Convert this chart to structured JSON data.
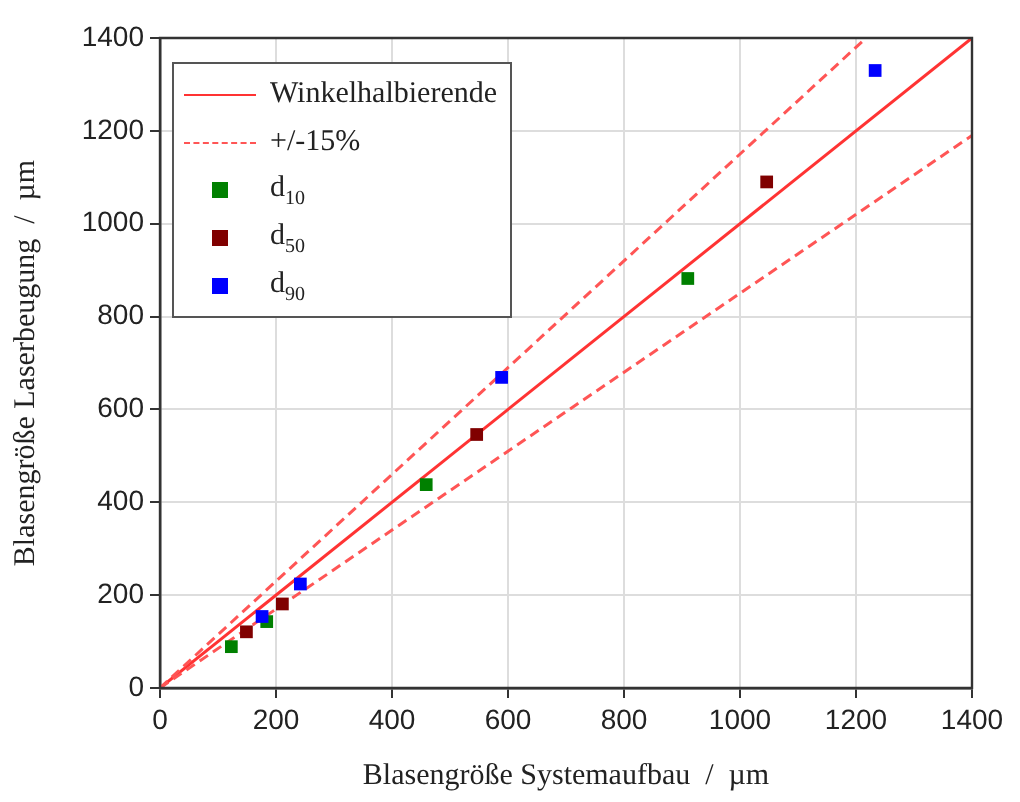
{
  "chart_data": {
    "type": "scatter",
    "xlabel": "Blasengröße Systemaufbau  /  µm",
    "ylabel": "Blasengröße Laserbeugung  /  µm",
    "xlim": [
      0,
      1400
    ],
    "ylim": [
      0,
      1400
    ],
    "xticks": [
      0,
      200,
      400,
      600,
      800,
      1000,
      1200,
      1400
    ],
    "yticks": [
      0,
      200,
      400,
      600,
      800,
      1000,
      1200,
      1400
    ],
    "grid": true,
    "legend": "top left",
    "marker": "square",
    "series": [
      {
        "name": "Winkelhalbierende",
        "type": "line",
        "line_style": "solid",
        "marker": "none",
        "color": "#ff3333",
        "x": [
          0,
          1400
        ],
        "values": [
          0,
          1400
        ]
      },
      {
        "name": "+/-15%",
        "type": "line",
        "line_style": "dashed",
        "marker": "none",
        "color": "#ff5555",
        "x": [
          0,
          1217.4
        ],
        "values": [
          0,
          1400
        ]
      },
      {
        "type": "line",
        "line_style": "dashed",
        "marker": "none",
        "color": "#ff5555",
        "x": [
          0,
          1400
        ],
        "values": [
          0,
          1190
        ]
      },
      {
        "name": "d$_{10}$",
        "type": "scatter",
        "color": "#008000",
        "x": [
          123,
          184,
          459,
          910
        ],
        "values": [
          89,
          143,
          438,
          882
        ]
      },
      {
        "name": "d$_{50}$",
        "type": "scatter",
        "color": "#800000",
        "x": [
          149,
          211,
          546,
          1046
        ],
        "values": [
          121,
          181,
          546,
          1090
        ]
      },
      {
        "name": "d$_{90}$",
        "type": "scatter",
        "color": "#0000ff",
        "x": [
          176,
          242,
          589,
          1233
        ],
        "values": [
          154,
          224,
          669,
          1330
        ]
      }
    ]
  }
}
